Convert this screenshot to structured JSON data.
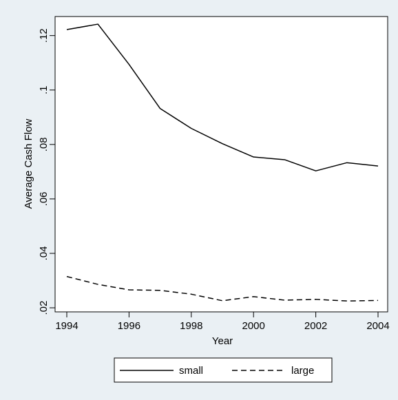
{
  "chart_data": {
    "type": "line",
    "title": "",
    "xlabel": "Year",
    "ylabel": "Average Cash Flow",
    "x": [
      1994,
      1995,
      1996,
      1997,
      1998,
      1999,
      2000,
      2001,
      2002,
      2003,
      2004
    ],
    "xlim": [
      1994,
      2004
    ],
    "ylim": [
      0.0185,
      0.127
    ],
    "xticks": [
      1994,
      1996,
      1998,
      2000,
      2002,
      2004
    ],
    "xtick_labels": [
      "1994",
      "1996",
      "1998",
      "2000",
      "2002",
      "2004"
    ],
    "yticks": [
      0.02,
      0.04,
      0.06,
      0.08,
      0.1,
      0.12
    ],
    "ytick_labels": [
      ".02",
      ".04",
      ".06",
      ".08",
      ".1",
      ".12"
    ],
    "grid": false,
    "legend_position": "bottom",
    "series": [
      {
        "name": "small",
        "style": "solid",
        "color": "#000000",
        "values": [
          0.1222,
          0.1242,
          0.1094,
          0.0932,
          0.0859,
          0.0803,
          0.0754,
          0.0744,
          0.0703,
          0.0733,
          0.0721
        ]
      },
      {
        "name": "large",
        "style": "dashed",
        "color": "#000000",
        "values": [
          0.0315,
          0.0286,
          0.0266,
          0.0264,
          0.025,
          0.0226,
          0.0241,
          0.0228,
          0.0231,
          0.0225,
          0.0227
        ]
      }
    ]
  }
}
